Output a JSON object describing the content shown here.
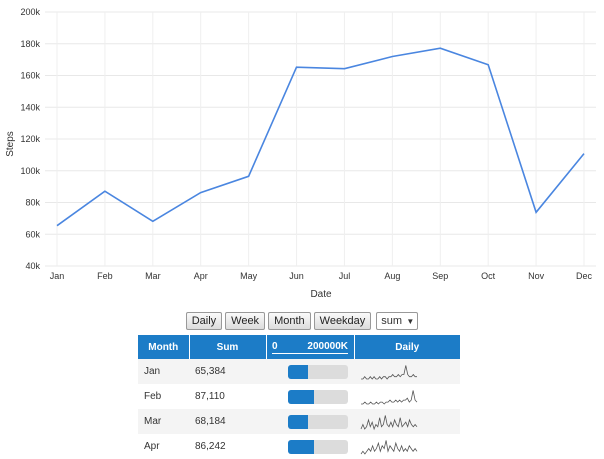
{
  "chart_data": {
    "type": "line",
    "xlabel": "Date",
    "ylabel": "Steps",
    "categories": [
      "Jan",
      "Feb",
      "Mar",
      "Apr",
      "May",
      "Jun",
      "Jul",
      "Aug",
      "Sep",
      "Oct",
      "Nov",
      "Dec"
    ],
    "series": [
      {
        "values": [
          65384,
          87110,
          68184,
          86242,
          96500,
          165200,
          164300,
          172000,
          177200,
          166800,
          73800,
          110800
        ]
      }
    ],
    "ylim": [
      40000,
      200000
    ],
    "yticks": [
      40000,
      60000,
      80000,
      100000,
      120000,
      140000,
      160000,
      180000,
      200000
    ],
    "ytick_labels": [
      "40k",
      "60k",
      "80k",
      "100k",
      "120k",
      "140k",
      "160k",
      "180k",
      "200k"
    ],
    "grid": true,
    "line_color": "#4a86e0"
  },
  "controls": {
    "buttons": [
      "Daily",
      "Week",
      "Month",
      "Weekday"
    ],
    "aggregate_selected": "sum"
  },
  "table": {
    "headers": {
      "month": "Month",
      "sum": "Sum",
      "scale_min": "0",
      "scale_max": "200000K",
      "daily": "Daily"
    },
    "bar_max": 200000,
    "accent": "#1c7cc7",
    "rows": [
      {
        "month": "Jan",
        "sum_label": "65,384",
        "sum": 65384,
        "daily": [
          3,
          3,
          4,
          3,
          3,
          4,
          3,
          4,
          3,
          3,
          4,
          3,
          4,
          4,
          3,
          4,
          4,
          5,
          4,
          4,
          5,
          4,
          5,
          5,
          9,
          5,
          4,
          4,
          5,
          4,
          4
        ]
      },
      {
        "month": "Feb",
        "sum_label": "87,110",
        "sum": 87110,
        "daily": [
          3,
          3,
          4,
          3,
          3,
          4,
          3,
          3,
          4,
          3,
          4,
          4,
          3,
          4,
          4,
          5,
          4,
          4,
          5,
          4,
          5,
          4,
          5,
          5,
          6,
          4,
          5,
          10,
          5,
          4
        ]
      },
      {
        "month": "Mar",
        "sum_label": "68,184",
        "sum": 68184,
        "daily": [
          3,
          5,
          3,
          4,
          7,
          4,
          6,
          3,
          5,
          4,
          8,
          4,
          5,
          9,
          5,
          4,
          6,
          4,
          7,
          5,
          4,
          8,
          4,
          5,
          6,
          4,
          7,
          5,
          4,
          5,
          4
        ]
      },
      {
        "month": "Apr",
        "sum_label": "86,242",
        "sum": 86242,
        "daily": [
          3,
          4,
          3,
          4,
          5,
          4,
          6,
          4,
          5,
          7,
          4,
          6,
          5,
          8,
          4,
          6,
          5,
          4,
          7,
          5,
          4,
          6,
          4,
          5,
          4,
          6,
          5,
          4,
          5,
          4
        ]
      }
    ]
  }
}
